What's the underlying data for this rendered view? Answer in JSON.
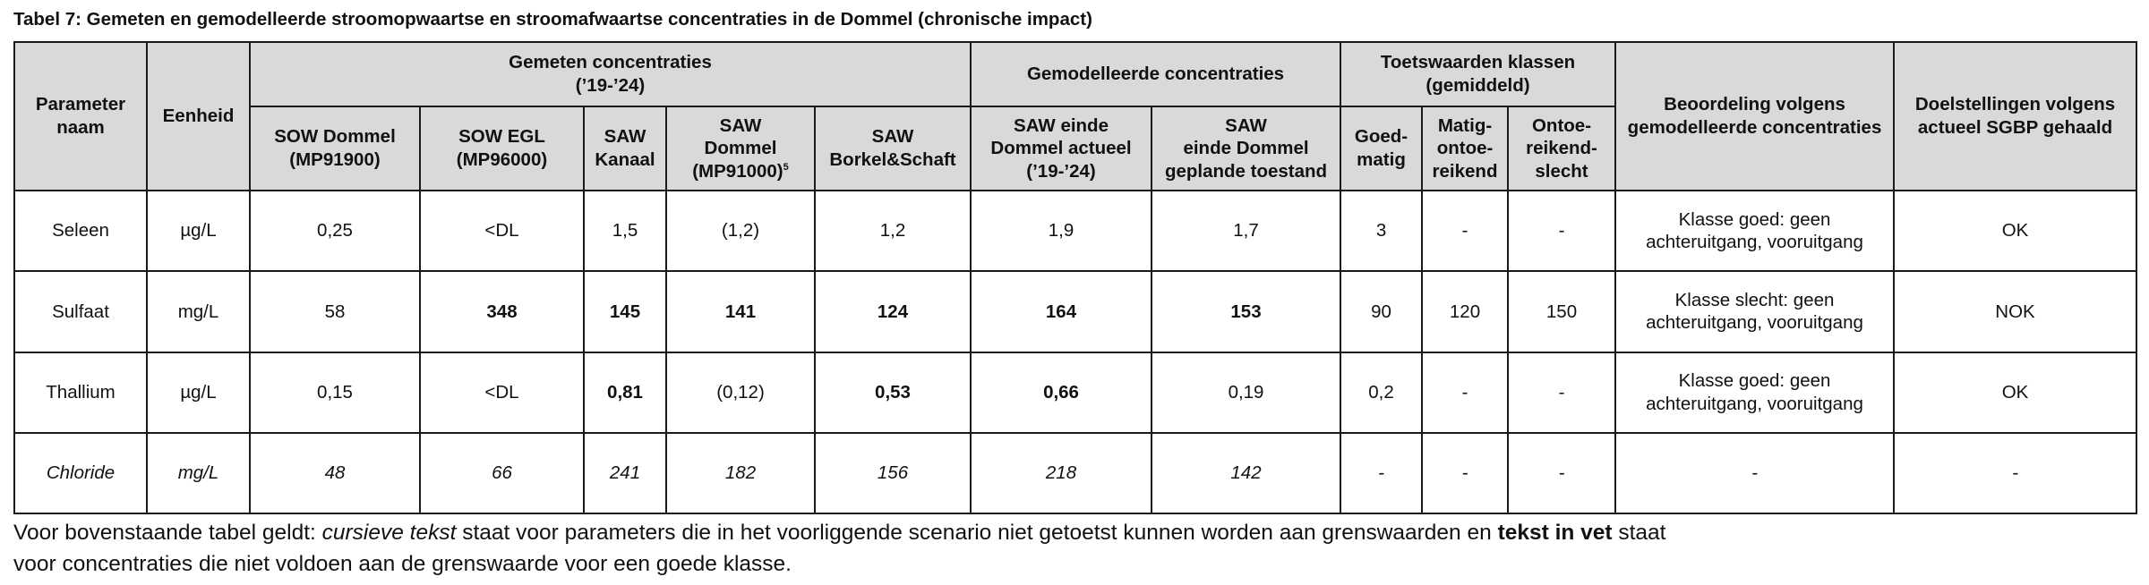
{
  "caption": "Tabel 7: Gemeten en gemodelleerde stroomopwaartse en stroomafwaartse concentraties in de Dommel (chronische impact)",
  "header": {
    "parameter_naam": "Parameter naam",
    "eenheid": "Eenheid",
    "gemeten_group_line1": "Gemeten concentraties",
    "gemeten_group_line2": "(’19-’24)",
    "gemodelleerd_group": "Gemodelleerde concentraties",
    "toets_group_line1": "Toetswaarden klassen",
    "toets_group_line2": "(gemiddeld)",
    "beoordeling": "Beoordeling volgens gemodelleerde concentraties",
    "doelstellingen": "Doelstellingen volgens actueel SGBP gehaald",
    "sow_dommel_1": "SOW Dommel",
    "sow_dommel_2": "(MP91900)",
    "sow_egl_1": "SOW EGL",
    "sow_egl_2": "(MP96000)",
    "saw_kanaal_1": "SAW",
    "saw_kanaal_2": "Kanaal",
    "saw_dommel_1": "SAW",
    "saw_dommel_2": "Dommel",
    "saw_dommel_3": "(MP91000)",
    "saw_dommel_sup": "5",
    "saw_borkel_1": "SAW",
    "saw_borkel_2": "Borkel&Schaft",
    "mod_actueel_1": "SAW einde",
    "mod_actueel_2": "Dommel actueel",
    "mod_actueel_3": "(’19-’24)",
    "mod_gepland_1": "SAW",
    "mod_gepland_2": "einde Dommel",
    "mod_gepland_3": "geplande toestand",
    "goed_1": "Goed-",
    "goed_2": "matig",
    "matig_1": "Matig-",
    "matig_2": "ontoe-",
    "matig_3": "reikend",
    "ontoe_1": "Ontoe-",
    "ontoe_2": "reikend-",
    "ontoe_3": "slecht"
  },
  "rows": [
    {
      "param": "Seleen",
      "unit": "µg/L",
      "sow_dommel": "0,25",
      "sow_egl": "<DL",
      "saw_kanaal": "1,5",
      "saw_dommel": "(1,2)",
      "saw_borkel": "1,2",
      "mod_actueel": "1,9",
      "mod_gepland": "1,7",
      "goed": "3",
      "matig": "-",
      "ontoe": "-",
      "beoordeling_1": "Klasse goed: geen",
      "beoordeling_2": "achteruitgang, vooruitgang",
      "doel": "OK"
    },
    {
      "param": "Sulfaat",
      "unit": "mg/L",
      "sow_dommel": "58",
      "sow_egl": "348",
      "saw_kanaal": "145",
      "saw_dommel": "141",
      "saw_borkel": "124",
      "mod_actueel": "164",
      "mod_gepland": "153",
      "goed": "90",
      "matig": "120",
      "ontoe": "150",
      "beoordeling_1": "Klasse slecht: geen",
      "beoordeling_2": "achteruitgang, vooruitgang",
      "doel": "NOK"
    },
    {
      "param": "Thallium",
      "unit": "µg/L",
      "sow_dommel": "0,15",
      "sow_egl": "<DL",
      "saw_kanaal": "0,81",
      "saw_dommel": "(0,12)",
      "saw_borkel": "0,53",
      "mod_actueel": "0,66",
      "mod_gepland": "0,19",
      "goed": "0,2",
      "matig": "-",
      "ontoe": "-",
      "beoordeling_1": "Klasse goed: geen",
      "beoordeling_2": "achteruitgang, vooruitgang",
      "doel": "OK"
    },
    {
      "param": "Chloride",
      "unit": "mg/L",
      "sow_dommel": "48",
      "sow_egl": "66",
      "saw_kanaal": "241",
      "saw_dommel": "182",
      "saw_borkel": "156",
      "mod_actueel": "218",
      "mod_gepland": "142",
      "goed": "-",
      "matig": "-",
      "ontoe": "-",
      "beoordeling": "-",
      "doel": "-"
    }
  ],
  "note": {
    "part1": "Voor bovenstaande tabel geldt: ",
    "italic": "cursieve tekst",
    "part2": " staat voor parameters die in het voorliggende scenario niet getoetst kunnen worden aan grenswaarden en ",
    "bold": "tekst in vet",
    "part3": " staat",
    "line2": "voor concentraties die niet voldoen aan de grenswaarde voor een goede klasse."
  }
}
